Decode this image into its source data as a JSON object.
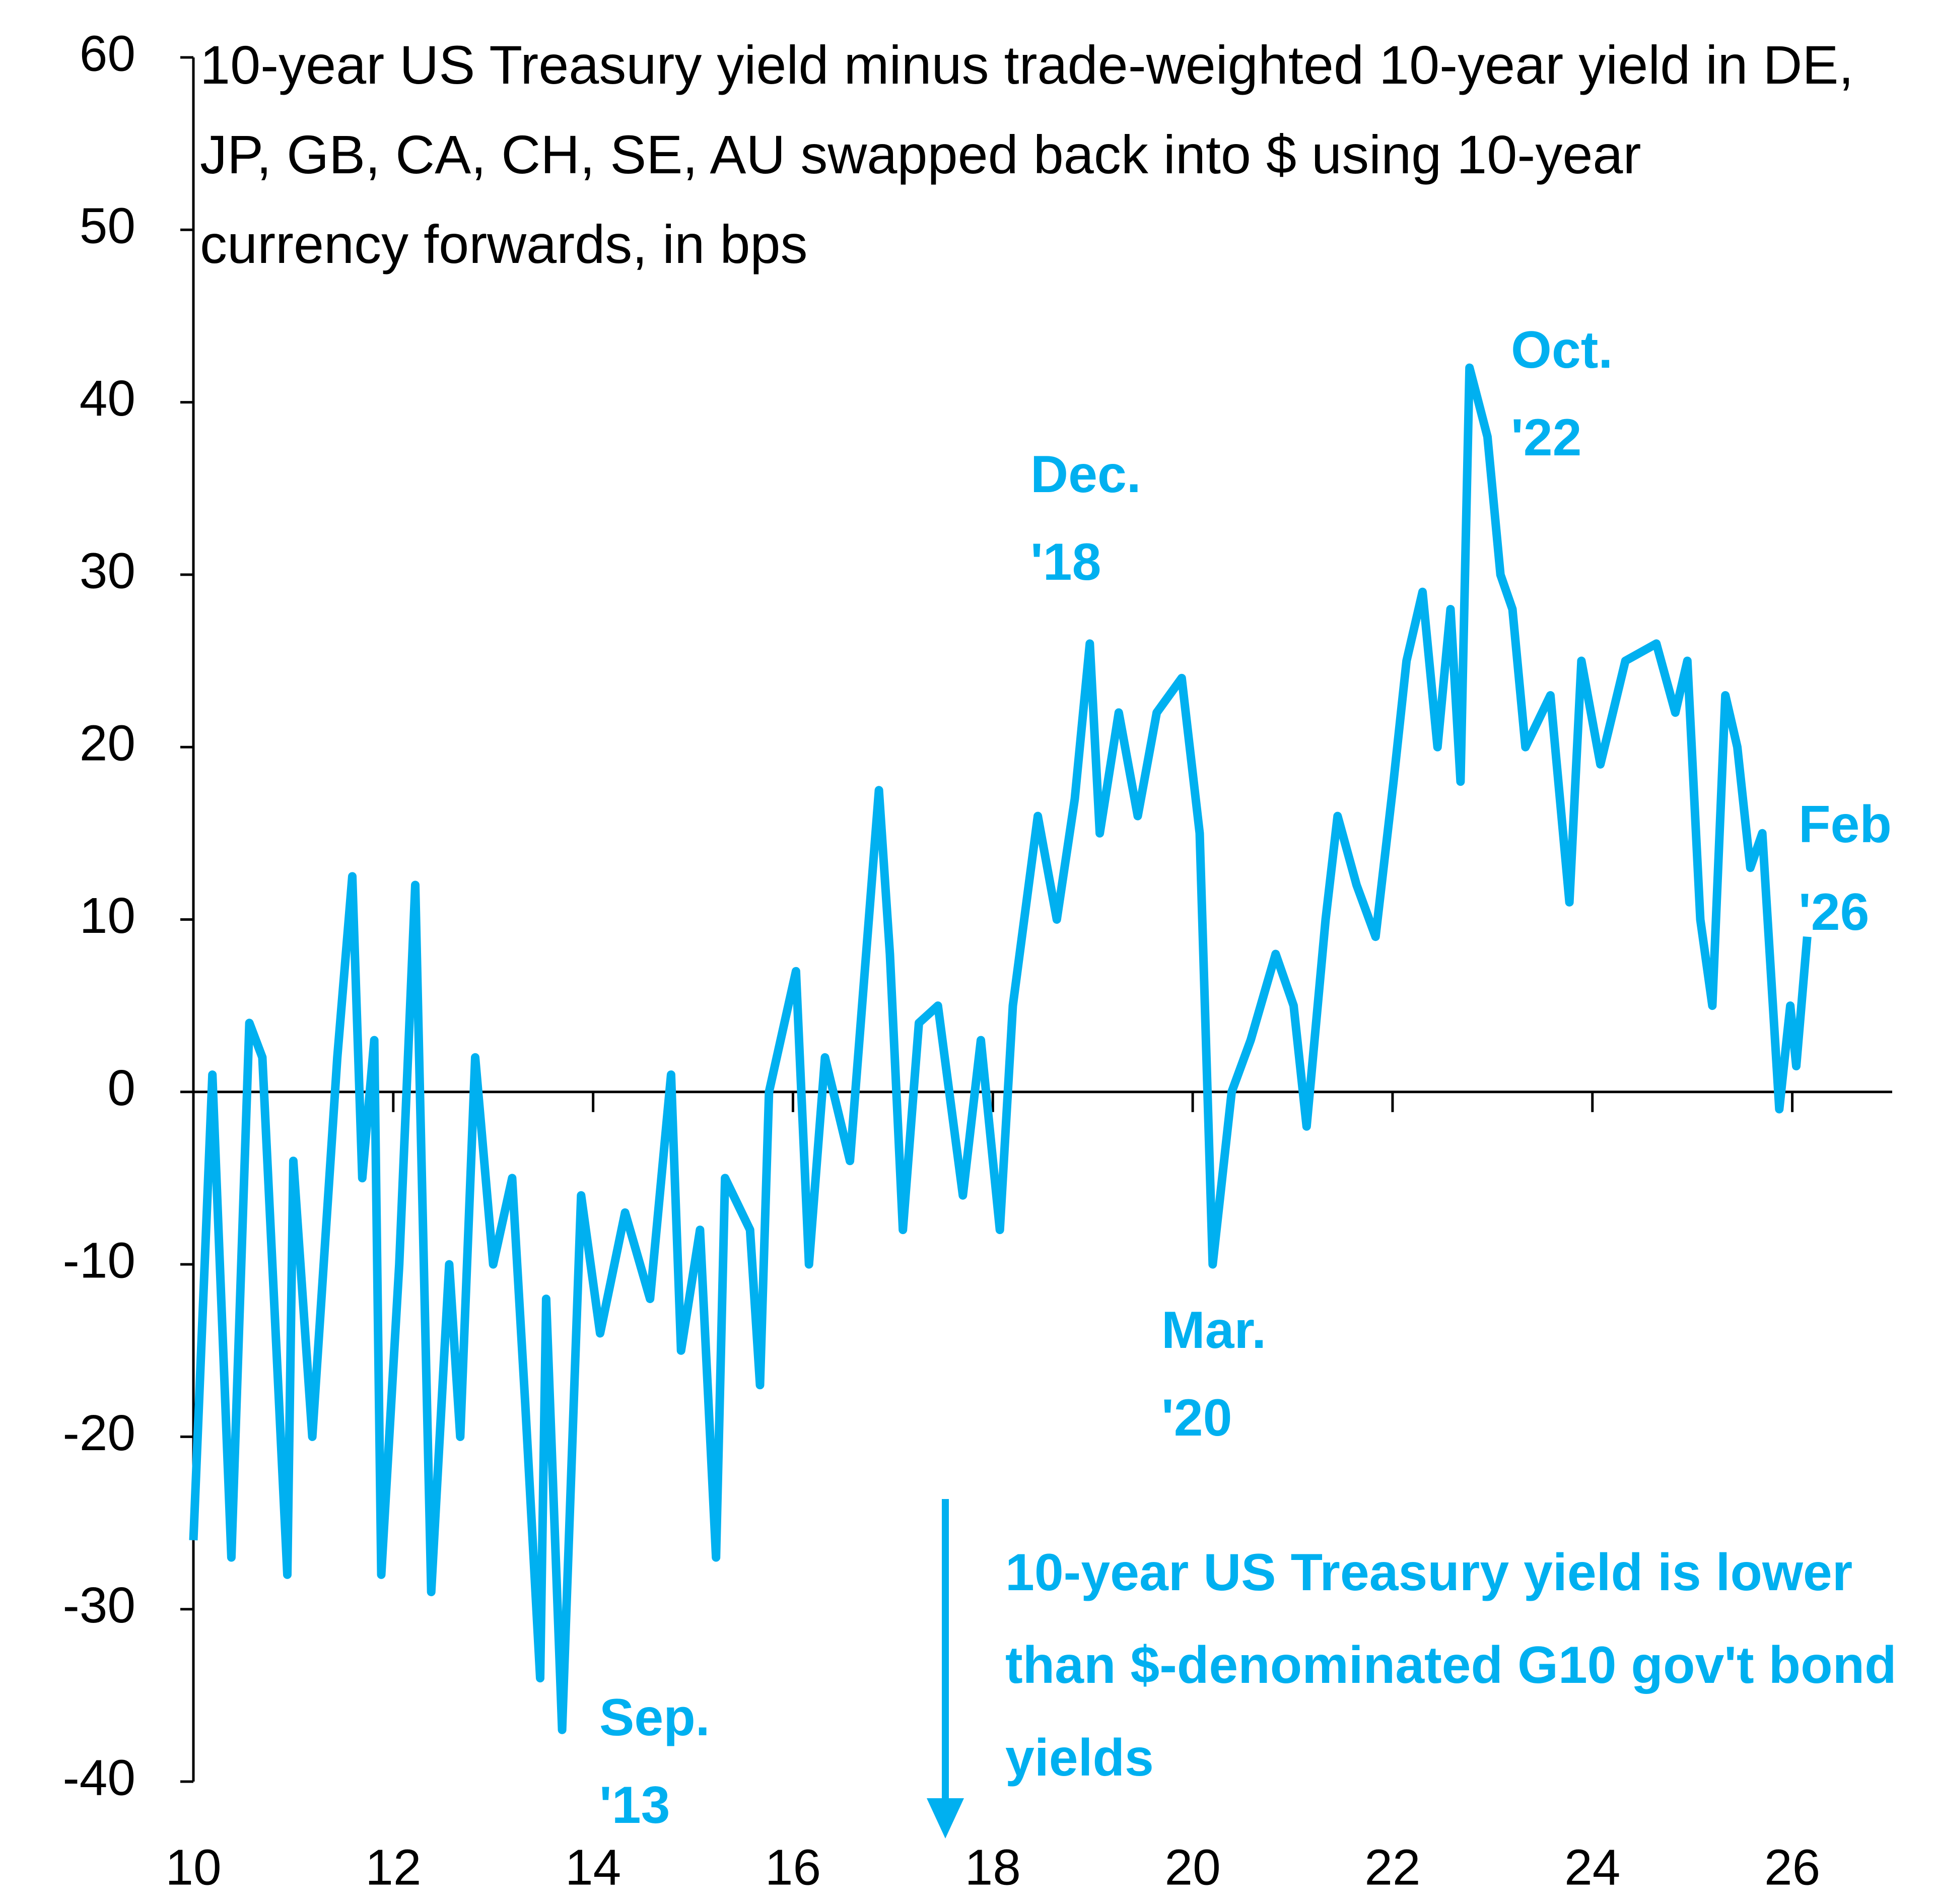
{
  "chart_data": {
    "type": "line",
    "title": "10-year US Treasury yield minus trade-weighted 10-year yield in DE, JP, GB, CA, CH, SE, AU swapped back into $ using 10-year currency forwards, in bps",
    "color": "#00b0f0",
    "x": [
      10.0,
      10.19,
      10.38,
      10.56,
      10.69,
      10.94,
      11.0,
      11.19,
      11.44,
      11.59,
      11.69,
      11.81,
      11.88,
      12.06,
      12.22,
      12.38,
      12.56,
      12.67,
      12.82,
      13.0,
      13.19,
      13.32,
      13.47,
      13.53,
      13.69,
      13.88,
      14.07,
      14.32,
      14.57,
      14.78,
      14.88,
      15.07,
      15.23,
      15.32,
      15.57,
      15.67,
      15.76,
      16.03,
      16.16,
      16.32,
      16.57,
      16.86,
      16.97,
      17.1,
      17.26,
      17.45,
      17.7,
      17.88,
      18.07,
      18.2,
      18.45,
      18.64,
      18.82,
      18.97,
      19.07,
      19.26,
      19.45,
      19.64,
      19.89,
      20.07,
      20.2,
      20.39,
      20.58,
      20.83,
      21.01,
      21.14,
      21.33,
      21.45,
      21.64,
      21.83,
      22.01,
      22.14,
      22.3,
      22.45,
      22.58,
      22.68,
      22.77,
      22.95,
      23.08,
      23.2,
      23.33,
      23.58,
      23.77,
      23.89,
      24.08,
      24.33,
      24.64,
      24.83,
      24.95,
      25.08,
      25.2,
      25.33,
      25.45,
      25.58,
      25.7,
      25.87,
      25.98,
      26.04,
      26.15
    ],
    "values": [
      -26,
      1,
      -27,
      4,
      2,
      -28,
      -4,
      -20,
      2,
      12.5,
      -5,
      3,
      -28,
      -10,
      12,
      -29,
      -10,
      -20,
      2,
      -10,
      -5,
      -18,
      -34,
      -12,
      -37,
      -6,
      -14,
      -7,
      -12,
      1,
      -15,
      -8,
      -27,
      -5,
      -8,
      -17,
      0,
      7,
      -10,
      2,
      -4,
      17.5,
      8,
      -8,
      4,
      5,
      -6,
      3,
      -8,
      5,
      16,
      10,
      17,
      26,
      15,
      22,
      16,
      22,
      24,
      15,
      -10,
      0,
      3,
      8,
      5,
      -2,
      10,
      16,
      12,
      9,
      18,
      25,
      29,
      20,
      28,
      18,
      42,
      38,
      30,
      28,
      20,
      23,
      11,
      25,
      19,
      25,
      26,
      22,
      25,
      10,
      5,
      23,
      20,
      13,
      15,
      -1,
      5,
      1.5,
      9
    ],
    "xlim": [
      10,
      27
    ],
    "xticks": [
      10,
      12,
      14,
      16,
      18,
      20,
      22,
      24,
      26
    ],
    "ylim": [
      -40,
      60
    ],
    "yticks": [
      -40,
      -30,
      -20,
      -10,
      0,
      10,
      20,
      30,
      40,
      50,
      60
    ],
    "annotations": [
      "Sep. '13",
      "Dec. '18",
      "Mar. '20",
      "Oct. '22",
      "Feb '26"
    ],
    "note": "10-year US Treasury yield is lower than $-denominated G10 gov't bond yields"
  }
}
